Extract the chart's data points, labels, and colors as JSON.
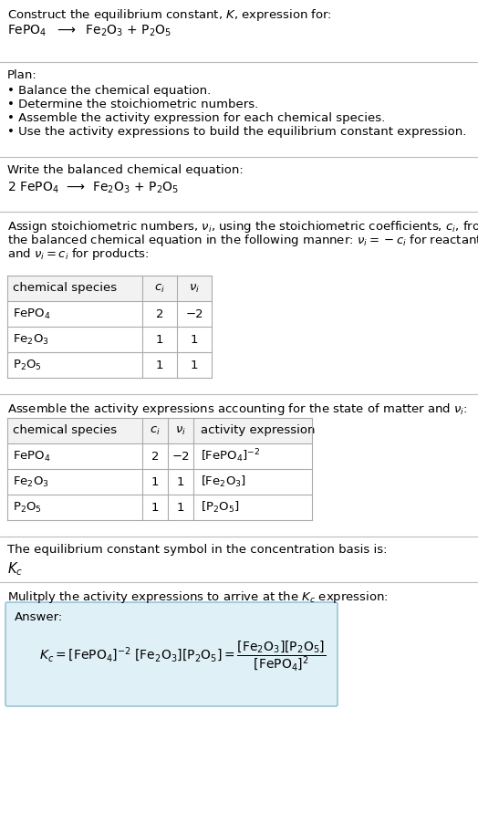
{
  "title_line1": "Construct the equilibrium constant, $K$, expression for:",
  "title_line2_parts": [
    "FePO",
    "4",
    "  ⟶  Fe",
    "2",
    "O",
    "3",
    " + P",
    "2",
    "O",
    "5"
  ],
  "plan_header": "Plan:",
  "plan_items": [
    "• Balance the chemical equation.",
    "• Determine the stoichiometric numbers.",
    "• Assemble the activity expression for each chemical species.",
    "• Use the activity expressions to build the equilibrium constant expression."
  ],
  "balanced_header": "Write the balanced chemical equation:",
  "balanced_eq": "2 FePO$_4$  ⟶  Fe$_2$O$_3$ + P$_2$O$_5$",
  "stoich_intro_lines": [
    "Assign stoichiometric numbers, $\\nu_i$, using the stoichiometric coefficients, $c_i$, from",
    "the balanced chemical equation in the following manner: $\\nu_i = -c_i$ for reactants",
    "and $\\nu_i = c_i$ for products:"
  ],
  "table1_headers": [
    "chemical species",
    "$c_i$",
    "$\\nu_i$"
  ],
  "table1_rows": [
    [
      "FePO$_4$",
      "2",
      "−2"
    ],
    [
      "Fe$_2$O$_3$",
      "1",
      "1"
    ],
    [
      "P$_2$O$_5$",
      "1",
      "1"
    ]
  ],
  "activity_intro": "Assemble the activity expressions accounting for the state of matter and $\\nu_i$:",
  "table2_headers": [
    "chemical species",
    "$c_i$",
    "$\\nu_i$",
    "activity expression"
  ],
  "table2_rows": [
    [
      "FePO$_4$",
      "2",
      "−2",
      "[FePO$_4$]$^{-2}$"
    ],
    [
      "Fe$_2$O$_3$",
      "1",
      "1",
      "[Fe$_2$O$_3$]"
    ],
    [
      "P$_2$O$_5$",
      "1",
      "1",
      "[P$_2$O$_5$]"
    ]
  ],
  "kc_intro": "The equilibrium constant symbol in the concentration basis is:",
  "kc_symbol": "$K_c$",
  "multiply_intro": "Mulitply the activity expressions to arrive at the $K_c$ expression:",
  "answer_label": "Answer:",
  "bg_color": "#ffffff",
  "text_color": "#000000",
  "separator_color": "#bbbbbb",
  "answer_box_bg": "#dff0f7",
  "answer_box_border": "#88bbd0",
  "font_size": 9.5,
  "table_fs": 9.5,
  "header_bg": "#f2f2f2"
}
